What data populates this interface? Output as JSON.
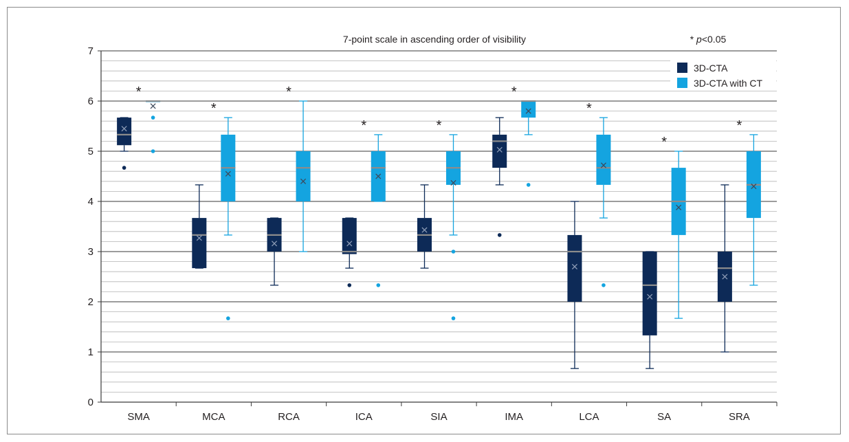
{
  "chart_data": {
    "type": "box",
    "title": "7-point scale in ascending order of visibility",
    "significance_note": {
      "prefix": "* ",
      "p": "p",
      "suffix": "<0.05"
    },
    "marker": "*",
    "ylim": [
      0,
      7
    ],
    "yticks": [
      "0",
      "1",
      "2",
      "3",
      "4",
      "5",
      "6",
      "7"
    ],
    "grid": {
      "major_step": 1,
      "minor_step": 0.2
    },
    "legend": {
      "placement": "top-right"
    },
    "categories": [
      "SMA",
      "MCA",
      "RCA",
      "ICA",
      "SIA",
      "IMA",
      "LCA",
      "SA",
      "SRA"
    ],
    "significant": [
      true,
      true,
      true,
      true,
      true,
      true,
      true,
      true,
      true
    ],
    "series": [
      {
        "name": "3D-CTA",
        "color": "#0d2a57",
        "boxes": [
          {
            "whisker_low": 5.0,
            "q1": 5.12,
            "median": 5.33,
            "q3": 5.67,
            "whisker_high": 5.67,
            "mean": 5.45,
            "outliers": [
              4.67
            ]
          },
          {
            "whisker_low": 2.67,
            "q1": 2.67,
            "median": 3.33,
            "q3": 3.67,
            "whisker_high": 4.33,
            "mean": 3.27,
            "outliers": []
          },
          {
            "whisker_low": 2.33,
            "q1": 3.0,
            "median": 3.33,
            "q3": 3.67,
            "whisker_high": 3.67,
            "mean": 3.16,
            "outliers": []
          },
          {
            "whisker_low": 2.67,
            "q1": 2.95,
            "median": 3.0,
            "q3": 3.67,
            "whisker_high": 3.67,
            "mean": 3.16,
            "outliers": [
              2.33
            ]
          },
          {
            "whisker_low": 2.67,
            "q1": 3.0,
            "median": 3.33,
            "q3": 3.67,
            "whisker_high": 4.33,
            "mean": 3.43,
            "outliers": []
          },
          {
            "whisker_low": 4.33,
            "q1": 4.67,
            "median": 5.2,
            "q3": 5.33,
            "whisker_high": 5.67,
            "mean": 5.03,
            "outliers": [
              3.33
            ]
          },
          {
            "whisker_low": 0.67,
            "q1": 2.0,
            "median": 3.0,
            "q3": 3.33,
            "whisker_high": 4.0,
            "mean": 2.7,
            "outliers": []
          },
          {
            "whisker_low": 0.67,
            "q1": 1.33,
            "median": 2.33,
            "q3": 3.0,
            "whisker_high": 3.0,
            "mean": 2.1,
            "outliers": []
          },
          {
            "whisker_low": 1.0,
            "q1": 2.0,
            "median": 2.67,
            "q3": 3.0,
            "whisker_high": 4.33,
            "mean": 2.5,
            "outliers": []
          }
        ]
      },
      {
        "name": "3D-CTA with CT",
        "color": "#14a4e0",
        "boxes": [
          {
            "whisker_low": 6.0,
            "q1": 6.0,
            "median": 6.0,
            "q3": 6.0,
            "whisker_high": 6.0,
            "mean": 5.9,
            "outliers": [
              5.67,
              5.0
            ]
          },
          {
            "whisker_low": 3.33,
            "q1": 4.0,
            "median": 4.67,
            "q3": 5.33,
            "whisker_high": 5.67,
            "mean": 4.55,
            "outliers": [
              1.67
            ]
          },
          {
            "whisker_low": 3.0,
            "q1": 4.0,
            "median": 4.67,
            "q3": 5.0,
            "whisker_high": 6.0,
            "mean": 4.4,
            "outliers": []
          },
          {
            "whisker_low": 4.0,
            "q1": 4.0,
            "median": 4.67,
            "q3": 5.0,
            "whisker_high": 5.33,
            "mean": 4.5,
            "outliers": [
              2.33
            ]
          },
          {
            "whisker_low": 3.33,
            "q1": 4.33,
            "median": 4.67,
            "q3": 5.0,
            "whisker_high": 5.33,
            "mean": 4.37,
            "outliers": [
              3.0,
              1.67
            ]
          },
          {
            "whisker_low": 5.33,
            "q1": 5.67,
            "median": 6.0,
            "q3": 6.0,
            "whisker_high": 6.0,
            "mean": 5.8,
            "outliers": [
              4.33
            ]
          },
          {
            "whisker_low": 3.67,
            "q1": 4.33,
            "median": 4.67,
            "q3": 5.33,
            "whisker_high": 5.67,
            "mean": 4.72,
            "outliers": [
              2.33
            ]
          },
          {
            "whisker_low": 1.67,
            "q1": 3.33,
            "median": 4.0,
            "q3": 4.67,
            "whisker_high": 5.0,
            "mean": 3.88,
            "outliers": []
          },
          {
            "whisker_low": 2.33,
            "q1": 3.67,
            "median": 4.33,
            "q3": 5.0,
            "whisker_high": 5.33,
            "mean": 4.3,
            "outliers": []
          }
        ]
      }
    ]
  }
}
